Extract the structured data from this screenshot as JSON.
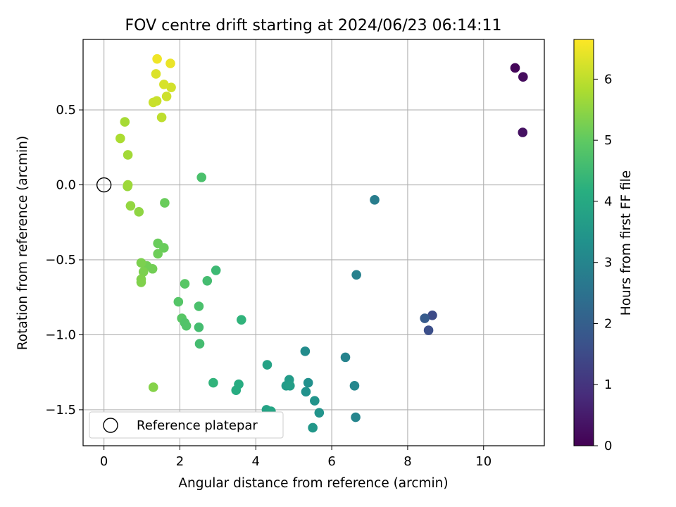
{
  "chart_data": {
    "type": "scatter",
    "title": "FOV centre drift starting at 2024/06/23 06:14:11",
    "xlabel": "Angular distance from reference (arcmin)",
    "ylabel": "Rotation from reference (arcmin)",
    "xlim": [
      -0.55,
      11.6
    ],
    "ylim": [
      -1.74,
      0.97
    ],
    "x_ticks": [
      0,
      2,
      4,
      6,
      8,
      10
    ],
    "x_tick_labels": [
      "0",
      "2",
      "4",
      "6",
      "8",
      "10"
    ],
    "y_ticks": [
      -1.5,
      -1.0,
      -0.5,
      0.0,
      0.5
    ],
    "y_tick_labels": [
      "−1.5",
      "−1.0",
      "−0.5",
      "0.0",
      "0.5"
    ],
    "grid": true,
    "colormap": "viridis",
    "colorbar": {
      "label": "Hours from first FF file",
      "range": [
        0,
        6.65
      ],
      "ticks": [
        0,
        1,
        2,
        3,
        4,
        5,
        6
      ],
      "tick_labels": [
        "0",
        "1",
        "2",
        "3",
        "4",
        "5",
        "6"
      ]
    },
    "legend": {
      "position": "lower-left",
      "entries": [
        {
          "label": "Reference platepar",
          "marker": "open-circle",
          "color": "#000000"
        }
      ]
    },
    "reference_point": {
      "x": 0,
      "y": 0
    },
    "points": [
      {
        "x": 10.83,
        "y": 0.78,
        "c": 0.1
      },
      {
        "x": 11.04,
        "y": 0.72,
        "c": 0.2
      },
      {
        "x": 11.03,
        "y": 0.35,
        "c": 0.3
      },
      {
        "x": 8.65,
        "y": -0.87,
        "c": 1.5
      },
      {
        "x": 8.45,
        "y": -0.89,
        "c": 1.9
      },
      {
        "x": 8.55,
        "y": -0.97,
        "c": 1.6
      },
      {
        "x": 7.13,
        "y": -0.1,
        "c": 2.8
      },
      {
        "x": 6.65,
        "y": -0.6,
        "c": 2.9
      },
      {
        "x": 6.36,
        "y": -1.15,
        "c": 2.95
      },
      {
        "x": 6.6,
        "y": -1.34,
        "c": 3.05
      },
      {
        "x": 6.63,
        "y": -1.55,
        "c": 3.0
      },
      {
        "x": 5.3,
        "y": -1.11,
        "c": 3.2
      },
      {
        "x": 5.38,
        "y": -1.32,
        "c": 3.3
      },
      {
        "x": 5.32,
        "y": -1.38,
        "c": 3.35
      },
      {
        "x": 5.55,
        "y": -1.44,
        "c": 3.4
      },
      {
        "x": 5.67,
        "y": -1.52,
        "c": 3.4
      },
      {
        "x": 5.5,
        "y": -1.62,
        "c": 3.5
      },
      {
        "x": 4.88,
        "y": -1.3,
        "c": 3.6
      },
      {
        "x": 4.8,
        "y": -1.34,
        "c": 3.6
      },
      {
        "x": 4.9,
        "y": -1.34,
        "c": 3.7
      },
      {
        "x": 4.3,
        "y": -1.2,
        "c": 3.8
      },
      {
        "x": 4.28,
        "y": -1.5,
        "c": 3.8
      },
      {
        "x": 4.4,
        "y": -1.51,
        "c": 3.9
      },
      {
        "x": 3.62,
        "y": -0.9,
        "c": 4.3
      },
      {
        "x": 3.55,
        "y": -1.33,
        "c": 4.1
      },
      {
        "x": 3.48,
        "y": -1.37,
        "c": 4.1
      },
      {
        "x": 2.88,
        "y": -1.32,
        "c": 4.3
      },
      {
        "x": 2.95,
        "y": -0.57,
        "c": 4.5
      },
      {
        "x": 2.72,
        "y": -0.64,
        "c": 4.6
      },
      {
        "x": 2.57,
        "y": 0.05,
        "c": 4.7
      },
      {
        "x": 2.5,
        "y": -0.81,
        "c": 4.7
      },
      {
        "x": 2.5,
        "y": -0.95,
        "c": 4.6
      },
      {
        "x": 2.52,
        "y": -1.06,
        "c": 4.6
      },
      {
        "x": 2.13,
        "y": -0.66,
        "c": 4.9
      },
      {
        "x": 2.05,
        "y": -0.89,
        "c": 4.9
      },
      {
        "x": 2.13,
        "y": -0.92,
        "c": 4.8
      },
      {
        "x": 2.17,
        "y": -0.94,
        "c": 4.8
      },
      {
        "x": 1.96,
        "y": -0.78,
        "c": 4.85
      },
      {
        "x": 1.6,
        "y": -0.12,
        "c": 5.1
      },
      {
        "x": 1.58,
        "y": -0.42,
        "c": 5.1
      },
      {
        "x": 1.42,
        "y": -0.39,
        "c": 5.1
      },
      {
        "x": 1.42,
        "y": -0.46,
        "c": 5.15
      },
      {
        "x": 1.28,
        "y": -0.56,
        "c": 5.2
      },
      {
        "x": 1.13,
        "y": -0.54,
        "c": 5.2
      },
      {
        "x": 0.98,
        "y": -0.52,
        "c": 5.3
      },
      {
        "x": 1.04,
        "y": -0.58,
        "c": 5.3
      },
      {
        "x": 0.98,
        "y": -0.63,
        "c": 5.35
      },
      {
        "x": 0.98,
        "y": -0.65,
        "c": 5.35
      },
      {
        "x": 1.3,
        "y": -1.35,
        "c": 5.4
      },
      {
        "x": 0.92,
        "y": -0.18,
        "c": 5.5
      },
      {
        "x": 0.7,
        "y": -0.14,
        "c": 5.55
      },
      {
        "x": 0.62,
        "y": -0.01,
        "c": 5.6
      },
      {
        "x": 0.63,
        "y": -0.0,
        "c": 5.65
      },
      {
        "x": 0.63,
        "y": 0.2,
        "c": 5.7
      },
      {
        "x": 0.55,
        "y": 0.42,
        "c": 5.75
      },
      {
        "x": 0.43,
        "y": 0.31,
        "c": 5.8
      },
      {
        "x": 1.52,
        "y": 0.45,
        "c": 6.0
      },
      {
        "x": 1.3,
        "y": 0.55,
        "c": 6.1
      },
      {
        "x": 1.39,
        "y": 0.56,
        "c": 6.1
      },
      {
        "x": 1.65,
        "y": 0.59,
        "c": 6.15
      },
      {
        "x": 1.77,
        "y": 0.65,
        "c": 6.2
      },
      {
        "x": 1.58,
        "y": 0.67,
        "c": 6.25
      },
      {
        "x": 1.37,
        "y": 0.74,
        "c": 6.3
      },
      {
        "x": 1.75,
        "y": 0.81,
        "c": 6.45
      },
      {
        "x": 1.4,
        "y": 0.84,
        "c": 6.5
      }
    ]
  }
}
